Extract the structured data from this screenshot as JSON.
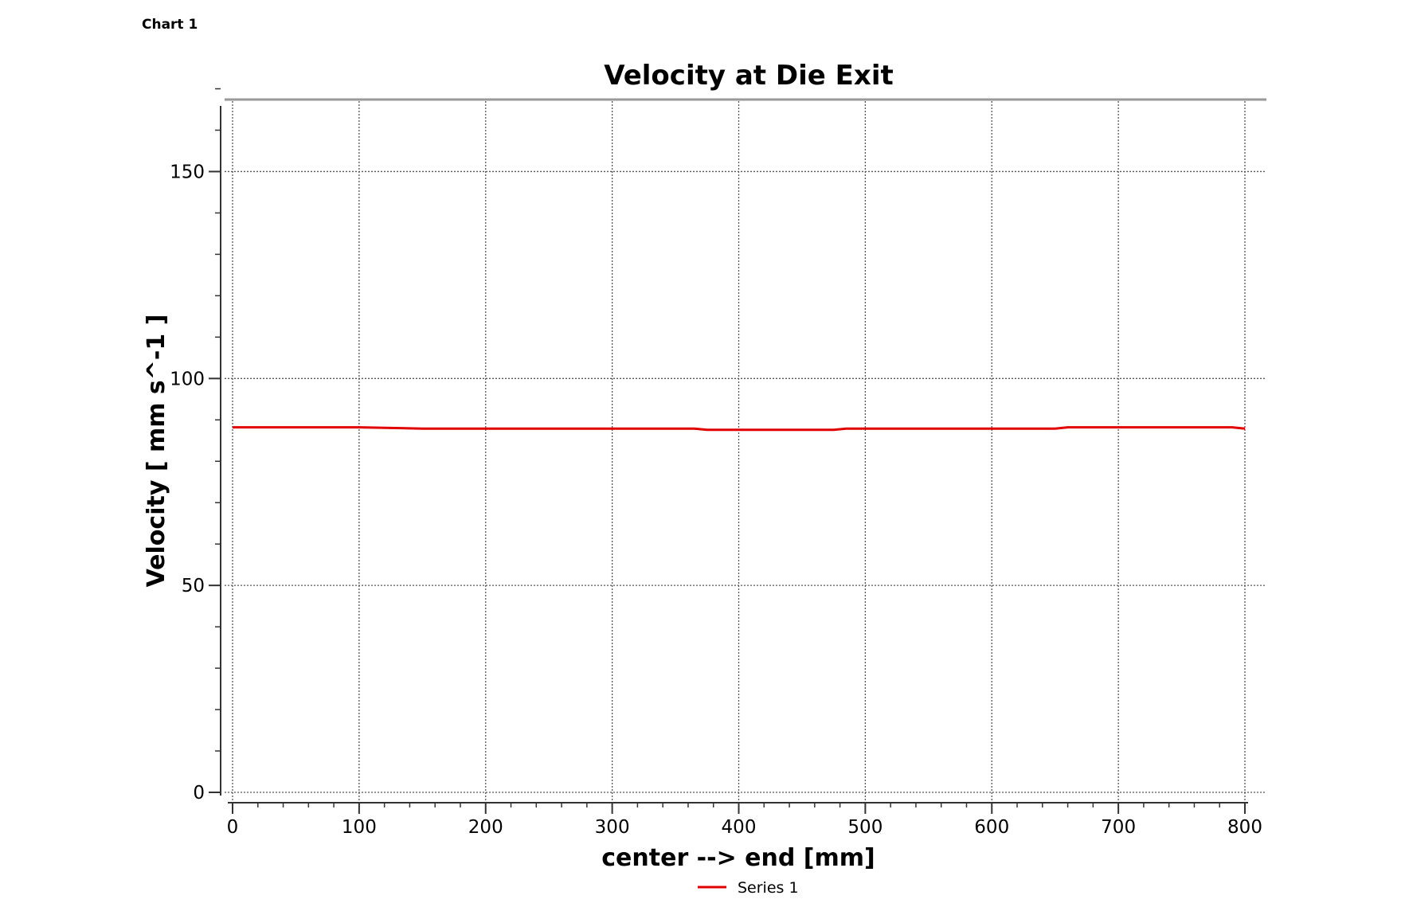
{
  "window": {
    "label": "Chart 1"
  },
  "chart_data": {
    "type": "line",
    "title": "Velocity at Die Exit",
    "xlabel": "center --> end [mm]",
    "ylabel": "Velocity [ mm s^-1 ]",
    "xlim": [
      0,
      800
    ],
    "ylim": [
      0,
      170
    ],
    "x_ticks": [
      0,
      100,
      200,
      300,
      400,
      500,
      600,
      700,
      800
    ],
    "y_ticks": [
      0,
      50,
      100,
      150
    ],
    "x_tick_labels": [
      "0",
      "100",
      "200",
      "300",
      "400",
      "500",
      "600",
      "700",
      "800"
    ],
    "y_tick_labels": [
      "0",
      "50",
      "100",
      "150"
    ],
    "grid": true,
    "legend_position": "bottom-center",
    "series": [
      {
        "name": "Series 1",
        "color": "#e00000",
        "x": [
          0,
          50,
          100,
          150,
          200,
          250,
          300,
          350,
          365,
          375,
          400,
          450,
          475,
          485,
          500,
          550,
          600,
          650,
          660,
          700,
          750,
          790,
          800
        ],
        "y": [
          88.2,
          88.2,
          88.2,
          87.9,
          87.9,
          87.9,
          87.9,
          87.9,
          87.9,
          87.6,
          87.6,
          87.6,
          87.6,
          87.9,
          87.9,
          87.9,
          87.9,
          87.9,
          88.2,
          88.2,
          88.2,
          88.2,
          87.9
        ]
      }
    ]
  }
}
